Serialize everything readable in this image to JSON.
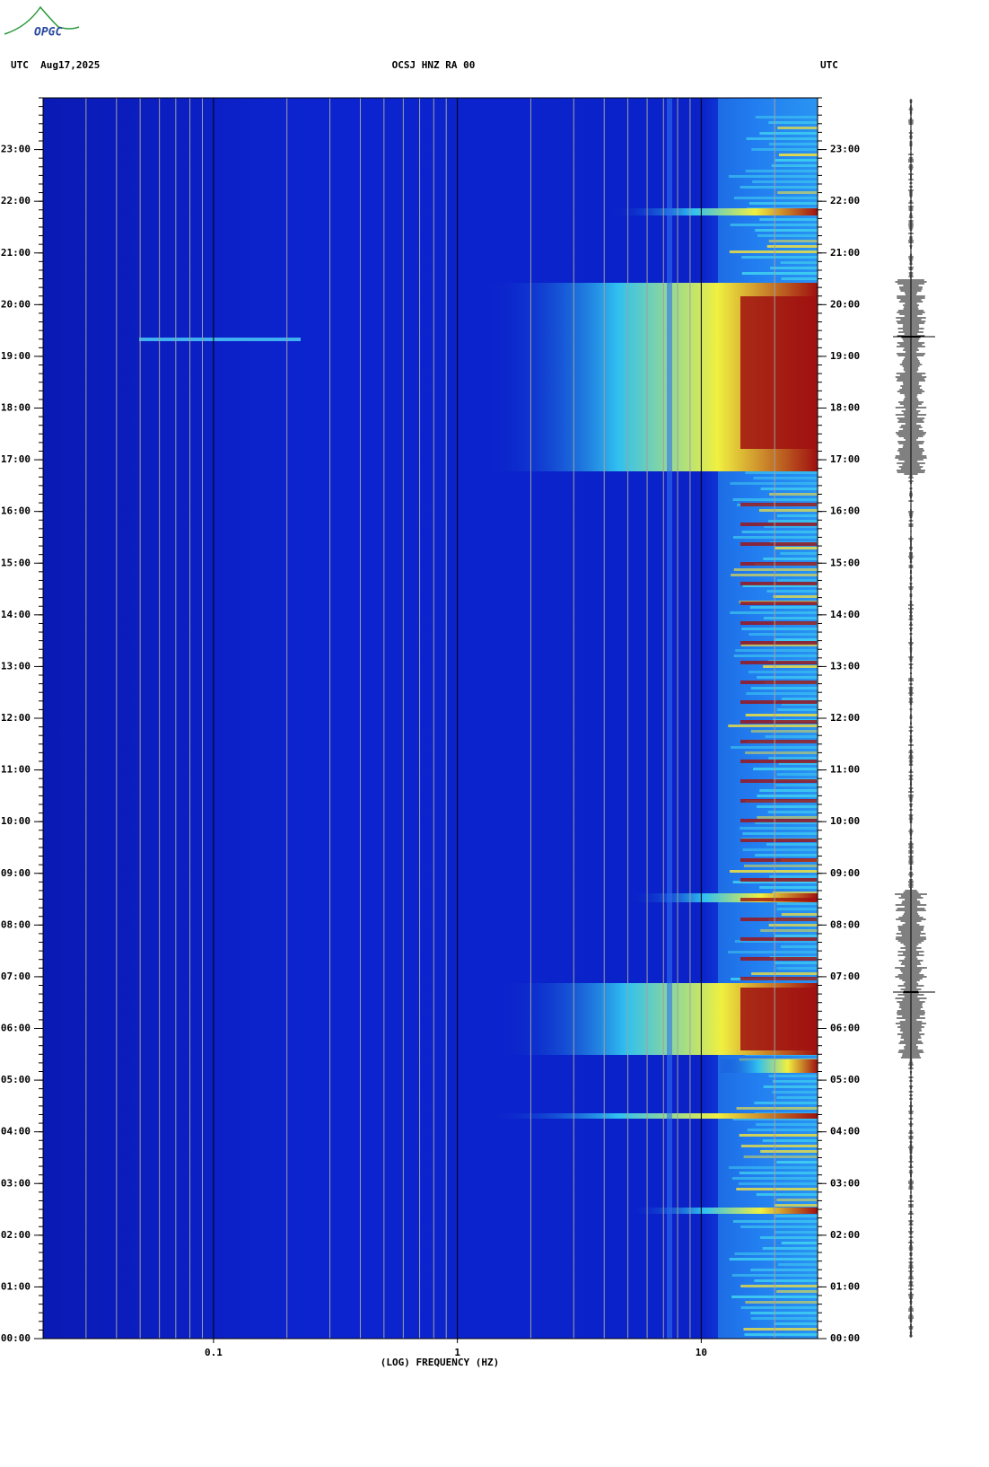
{
  "logo": "OPGC",
  "chart_data": {
    "type": "spectrogram",
    "title": "OCSJ HNZ RA 00",
    "left_header": "UTC  Aug17,2025",
    "right_header": "UTC",
    "xlabel": "(LOG) FREQUENCY (HZ)",
    "xscale": "log",
    "xlim": [
      0.02,
      30
    ],
    "xticks": [
      0.1,
      1,
      10
    ],
    "xgrid": [
      0.03,
      0.04,
      0.05,
      0.06,
      0.07,
      0.08,
      0.09,
      0.2,
      0.3,
      0.4,
      0.5,
      0.6,
      0.7,
      0.8,
      0.9,
      2,
      3,
      4,
      5,
      6,
      7,
      8,
      9,
      20
    ],
    "ylim": [
      0,
      24
    ],
    "yticks": [
      {
        "value": 0,
        "label": "00:00"
      },
      {
        "value": 1,
        "label": "01:00"
      },
      {
        "value": 2,
        "label": "02:00"
      },
      {
        "value": 3,
        "label": "03:00"
      },
      {
        "value": 4,
        "label": "04:00"
      },
      {
        "value": 5,
        "label": "05:00"
      },
      {
        "value": 6,
        "label": "06:00"
      },
      {
        "value": 7,
        "label": "07:00"
      },
      {
        "value": 8,
        "label": "08:00"
      },
      {
        "value": 9,
        "label": "09:00"
      },
      {
        "value": 10,
        "label": "10:00"
      },
      {
        "value": 11,
        "label": "11:00"
      },
      {
        "value": 12,
        "label": "12:00"
      },
      {
        "value": 13,
        "label": "13:00"
      },
      {
        "value": 14,
        "label": "14:00"
      },
      {
        "value": 15,
        "label": "15:00"
      },
      {
        "value": 16,
        "label": "16:00"
      },
      {
        "value": 17,
        "label": "17:00"
      },
      {
        "value": 18,
        "label": "18:00"
      },
      {
        "value": 19,
        "label": "19:00"
      },
      {
        "value": 20,
        "label": "20:00"
      },
      {
        "value": 21,
        "label": "21:00"
      },
      {
        "value": 22,
        "label": "22:00"
      },
      {
        "value": 23,
        "label": "23:00"
      }
    ]
  }
}
